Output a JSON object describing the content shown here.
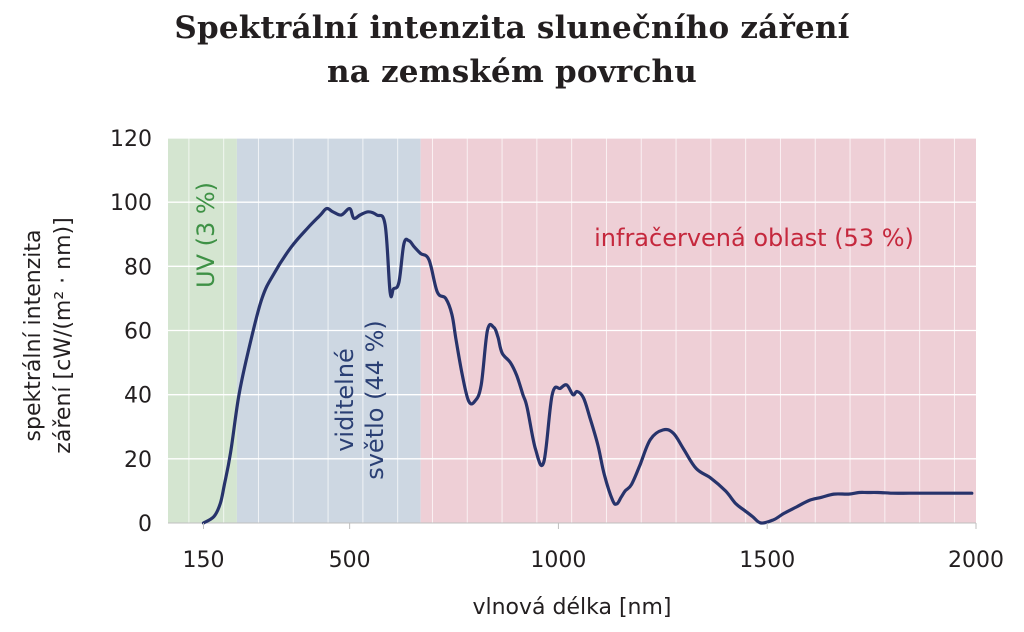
{
  "title": [
    "Spektrální intenzita slunečního záření",
    "na zemském povrchu"
  ],
  "colors": {
    "uv_band": "#d4e5d0",
    "visible_band": "#cdd7e2",
    "ir_band": "#eecfd6",
    "uv_text": "#3e9145",
    "visible_text": "#2a3f74",
    "ir_text": "#c5283d",
    "curve": "#27336b",
    "grid": "#ffffff",
    "text": "#231f20"
  },
  "chart_data": {
    "type": "line",
    "title": "Spektrální intenzita slunečního záření na zemském povrchu",
    "xlabel": "vlnová délka [nm]",
    "ylabel_lines": [
      "spektrální intenzita",
      "záření [cW/(m² · nm)]"
    ],
    "xlim": [
      0,
      2000
    ],
    "ylim": [
      0,
      120
    ],
    "x_ticks": [
      {
        "value": 150,
        "label": "150"
      },
      {
        "value": 500,
        "label": "500"
      },
      {
        "value": 1000,
        "label": "1000"
      },
      {
        "value": 1500,
        "label": "1500"
      },
      {
        "value": 2000,
        "label": "2000"
      }
    ],
    "y_ticks": [
      0,
      20,
      40,
      60,
      80,
      100,
      120
    ],
    "grid": true,
    "regions": [
      {
        "name": "UV (3 %)",
        "lines": [
          "UV (3 %)"
        ],
        "x_range": [
          0,
          230
        ],
        "color_key": "uv_band",
        "text_key": "uv_text",
        "orientation": "vertical"
      },
      {
        "name": "viditelné světlo (44 %)",
        "lines": [
          "viditelné",
          "světlo (44 %)"
        ],
        "x_range": [
          230,
          670
        ],
        "color_key": "visible_band",
        "text_key": "visible_text",
        "orientation": "vertical"
      },
      {
        "name": "infračervená oblast (53 %)",
        "lines": [
          "infračervená oblast (53 %)"
        ],
        "x_range": [
          670,
          2000
        ],
        "color_key": "ir_band",
        "text_key": "ir_text",
        "orientation": "horizontal"
      }
    ],
    "series": [
      {
        "x": [
          150,
          175,
          190,
          200,
          215,
          235,
          260,
          290,
          320,
          360,
          400,
          430,
          445,
          460,
          480,
          500,
          510,
          525,
          545,
          565,
          585,
          597,
          605,
          618,
          630,
          642,
          655,
          670,
          690,
          710,
          730,
          745,
          755,
          770,
          785,
          800,
          815,
          830,
          845,
          855,
          865,
          885,
          900,
          915,
          925,
          945,
          965,
          985,
          1005,
          1020,
          1035,
          1045,
          1060,
          1075,
          1095,
          1110,
          1130,
          1140,
          1150,
          1160,
          1175,
          1195,
          1220,
          1250,
          1275,
          1300,
          1330,
          1365,
          1400,
          1425,
          1445,
          1465,
          1485,
          1515,
          1540,
          1570,
          1600,
          1630,
          1660,
          1695,
          1720,
          1740,
          1765,
          1800,
          1840,
          1880,
          1920,
          1960,
          1990
        ],
        "y": [
          0,
          2,
          6,
          12,
          22,
          40,
          55,
          70,
          78,
          86,
          92,
          96,
          98,
          97,
          96,
          98,
          95,
          96,
          97,
          96,
          93,
          72,
          73,
          75,
          87,
          88,
          86,
          84,
          82,
          72,
          70,
          65,
          57,
          46,
          38,
          38,
          43,
          60,
          61,
          58,
          53,
          50,
          46,
          40,
          36,
          23,
          19,
          40,
          42,
          43,
          40,
          41,
          39,
          33,
          24,
          15,
          7,
          6,
          8,
          10,
          12,
          18,
          26,
          29,
          28,
          23,
          17,
          14,
          10,
          6,
          4,
          2,
          0,
          1,
          3,
          5,
          7,
          8,
          9,
          9,
          9.5,
          9.5,
          9.5,
          9.3,
          9.3,
          9.3,
          9.3,
          9.3,
          9.3
        ]
      }
    ]
  }
}
